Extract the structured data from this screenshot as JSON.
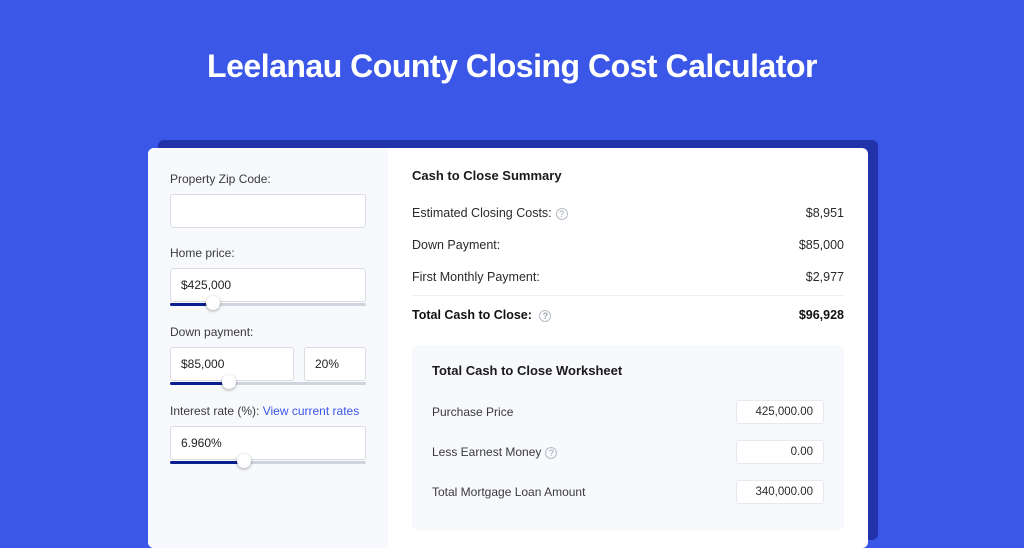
{
  "colors": {
    "page_bg": "#3b57e8",
    "card_bg": "#ffffff",
    "shadow_bg": "#2233aa",
    "panel_bg": "#f7f9fc",
    "text_primary": "#1a1a1a",
    "text_body": "#3a3a3a",
    "link": "#3b57e8",
    "slider_track": "#d0d4dc",
    "slider_fill": "#0a1f8f",
    "input_border": "#d9dde3"
  },
  "hero": {
    "title": "Leelanau County Closing Cost Calculator"
  },
  "form": {
    "zip_label": "Property Zip Code:",
    "zip_value": "",
    "home_price_label": "Home price:",
    "home_price_value": "$425,000",
    "home_price_slider_pct": 22,
    "down_payment_label": "Down payment:",
    "down_payment_value": "$85,000",
    "down_payment_pct_value": "20%",
    "down_payment_slider_pct": 30,
    "interest_label": "Interest rate (%):",
    "interest_link": "View current rates",
    "interest_value": "6.960%",
    "interest_slider_pct": 38
  },
  "summary": {
    "title": "Cash to Close Summary",
    "rows": [
      {
        "label": "Estimated Closing Costs:",
        "help": true,
        "value": "$8,951"
      },
      {
        "label": "Down Payment:",
        "help": false,
        "value": "$85,000"
      },
      {
        "label": "First Monthly Payment:",
        "help": false,
        "value": "$2,977"
      }
    ],
    "total_label": "Total Cash to Close:",
    "total_help": true,
    "total_value": "$96,928"
  },
  "worksheet": {
    "title": "Total Cash to Close Worksheet",
    "rows": [
      {
        "label": "Purchase Price",
        "help": false,
        "value": "425,000.00"
      },
      {
        "label": "Less Earnest Money",
        "help": true,
        "value": "0.00"
      },
      {
        "label": "Total Mortgage Loan Amount",
        "help": false,
        "value": "340,000.00"
      }
    ]
  }
}
